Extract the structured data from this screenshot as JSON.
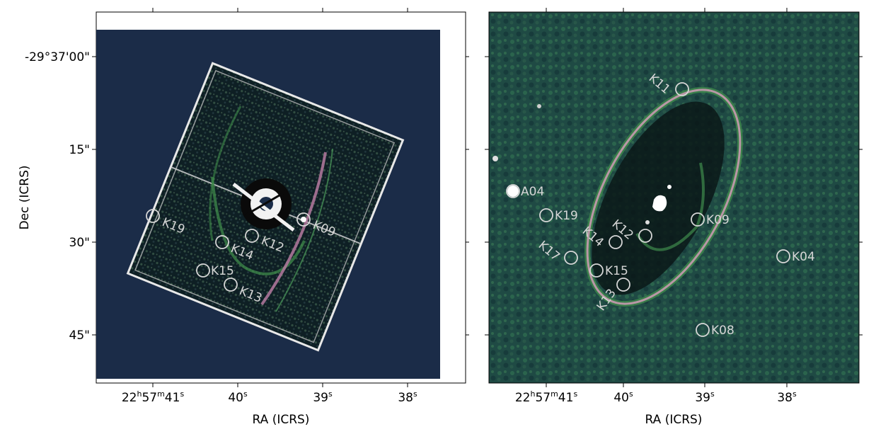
{
  "left_panel": {
    "ylabel": "Dec (ICRS)",
    "xlabel": "RA (ICRS)",
    "y_ticks": [
      "-29°37'00\"",
      "15\"",
      "30\"",
      "45\""
    ],
    "x_ticks": [
      {
        "pre": "22",
        "s1": "h",
        "mid": "57",
        "s2": "m",
        "post": "41",
        "s3": "s"
      },
      {
        "pre": "40",
        "s3": "s"
      },
      {
        "pre": "39",
        "s3": "s"
      },
      {
        "pre": "38",
        "s3": "s"
      }
    ],
    "markers": [
      "K19",
      "K14",
      "K12",
      "K09",
      "K15",
      "K13"
    ]
  },
  "right_panel": {
    "xlabel": "RA (ICRS)",
    "x_ticks": [
      {
        "pre": "22",
        "s1": "h",
        "mid": "57",
        "s2": "m",
        "post": "41",
        "s3": "s"
      },
      {
        "pre": "40",
        "s3": "s"
      },
      {
        "pre": "39",
        "s3": "s"
      },
      {
        "pre": "38",
        "s3": "s"
      }
    ],
    "markers": [
      "K11",
      "A04",
      "K19",
      "K09",
      "K12",
      "K14",
      "K17",
      "K04",
      "K15",
      "K13",
      "K08"
    ]
  },
  "colors": {
    "background_navy": "#1b2c48",
    "right_bg": "#1f4a44",
    "marker": "#d6d6d6",
    "ring": "#c89ab0"
  }
}
